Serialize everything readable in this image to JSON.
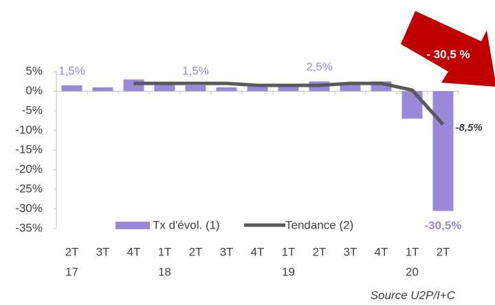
{
  "chart_data": {
    "type": "bar",
    "categories": [
      "2T",
      "3T",
      "4T",
      "1T",
      "2T",
      "3T",
      "4T",
      "1T",
      "2T",
      "3T",
      "4T",
      "1T",
      "2T"
    ],
    "years": [
      "17",
      null,
      null,
      "18",
      null,
      null,
      null,
      "19",
      null,
      null,
      null,
      "20",
      null
    ],
    "series": [
      {
        "name": "Tx d'évol. (1)",
        "type": "bar",
        "color": "#9b88d8",
        "values": [
          1.5,
          1.0,
          3.0,
          2.0,
          1.5,
          1.0,
          1.2,
          1.5,
          2.5,
          2.0,
          2.5,
          -7.0,
          -30.5
        ],
        "value_labels": [
          "1,5%",
          null,
          null,
          null,
          "1,5%",
          null,
          null,
          null,
          "2,5%",
          null,
          null,
          null,
          "-30,5%"
        ]
      },
      {
        "name": "Tendance (2)",
        "type": "line",
        "color": "#595959",
        "values": [
          null,
          null,
          2.0,
          2.0,
          2.0,
          2.0,
          1.5,
          1.5,
          1.5,
          2.0,
          2.0,
          0.3,
          -8.5
        ],
        "value_labels": [
          null,
          null,
          null,
          null,
          null,
          null,
          null,
          null,
          null,
          null,
          null,
          null,
          "-8,5%"
        ]
      }
    ],
    "ylim": [
      -35,
      5
    ],
    "yticks": [
      {
        "value": 5,
        "label": "5%"
      },
      {
        "value": 0,
        "label": "0%"
      },
      {
        "value": -5,
        "label": "-5%"
      },
      {
        "value": -10,
        "label": "-10%"
      },
      {
        "value": -15,
        "label": "-15%"
      },
      {
        "value": -20,
        "label": "-20%"
      },
      {
        "value": -25,
        "label": "-25%"
      },
      {
        "value": -30,
        "label": "-30%"
      },
      {
        "value": -35,
        "label": "-35%"
      }
    ],
    "annotation": "- 30,5 %",
    "annotation_color": "#c00000",
    "source": "Source U2P/I+C"
  }
}
